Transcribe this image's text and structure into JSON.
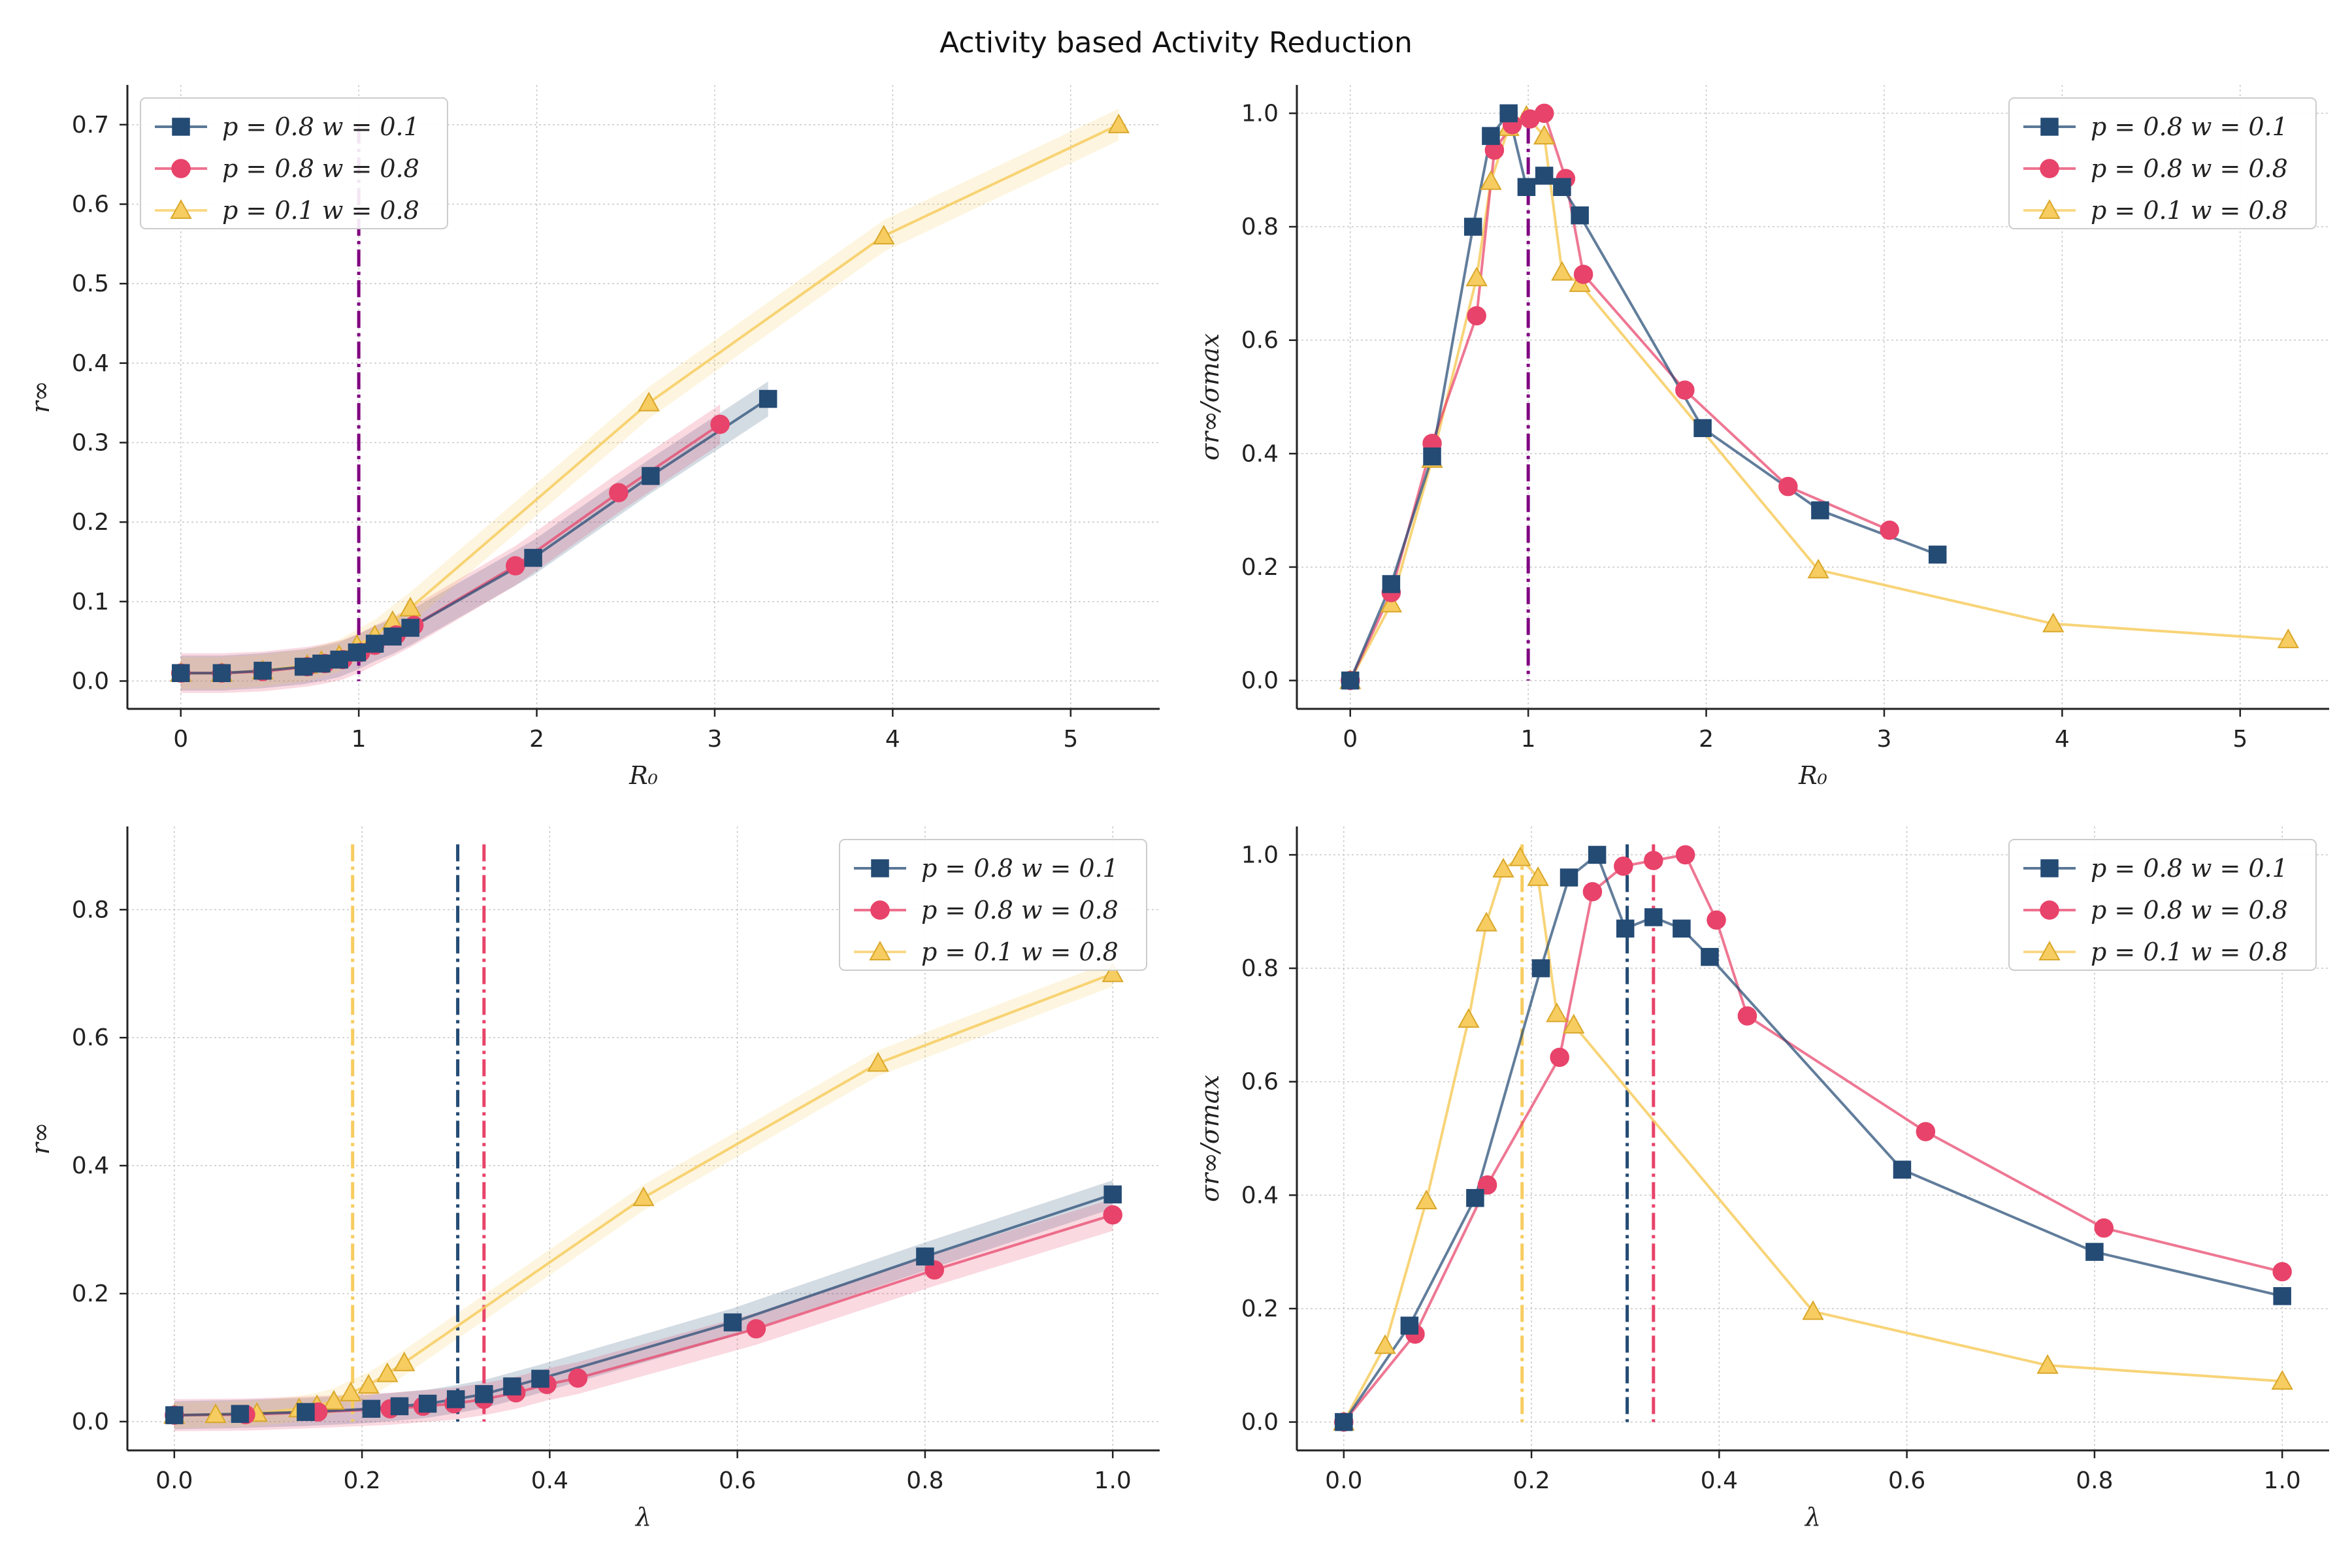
{
  "figure": {
    "title": "Activity based Activity Reduction"
  },
  "chart_data": [
    {
      "type": "line",
      "panel": "top-left",
      "xlabel": "R₀",
      "ylabel": "r∞",
      "xlim": [
        -0.3,
        5.5
      ],
      "ylim": [
        -0.035,
        0.75
      ],
      "xticks": [
        0,
        1,
        2,
        3,
        4,
        5
      ],
      "yticks": [
        0.0,
        0.1,
        0.2,
        0.3,
        0.4,
        0.5,
        0.6,
        0.7
      ],
      "grid": true,
      "legend": "top-left",
      "vlines": [
        {
          "x": 1.0,
          "color": "#800080"
        }
      ],
      "series": [
        {
          "name": "p = 0.8 w = 0.1",
          "color": "#244b74",
          "marker": "square",
          "x": [
            0,
            0.23,
            0.46,
            0.69,
            0.79,
            0.89,
            0.99,
            1.09,
            1.19,
            1.29,
            1.98,
            2.64,
            3.3
          ],
          "y": [
            0.01,
            0.01,
            0.013,
            0.018,
            0.022,
            0.027,
            0.036,
            0.047,
            0.056,
            0.067,
            0.155,
            0.258,
            0.355
          ],
          "band": 0.022
        },
        {
          "name": "p = 0.8 w = 0.8",
          "color": "#e8436a",
          "marker": "circle",
          "x": [
            0,
            0.23,
            0.46,
            0.71,
            0.81,
            0.91,
            1.01,
            1.09,
            1.21,
            1.31,
            1.88,
            2.46,
            3.03
          ],
          "y": [
            0.01,
            0.01,
            0.012,
            0.018,
            0.022,
            0.027,
            0.036,
            0.045,
            0.058,
            0.07,
            0.145,
            0.237,
            0.323
          ],
          "band": 0.025
        },
        {
          "name": "p = 0.1 w = 0.8",
          "color": "#f7cc60",
          "marker": "triangle",
          "x": [
            0,
            0.23,
            0.46,
            0.71,
            0.79,
            0.89,
            0.99,
            1.09,
            1.19,
            1.29,
            2.63,
            3.95,
            5.27
          ],
          "y": [
            0.01,
            0.01,
            0.013,
            0.02,
            0.025,
            0.032,
            0.045,
            0.057,
            0.075,
            0.092,
            0.35,
            0.56,
            0.7
          ],
          "band": 0.02
        }
      ]
    },
    {
      "type": "line",
      "panel": "top-right",
      "xlabel": "R₀",
      "ylabel": "σr∞/σmax",
      "xlim": [
        -0.3,
        5.5
      ],
      "ylim": [
        -0.05,
        1.05
      ],
      "xticks": [
        0,
        1,
        2,
        3,
        4,
        5
      ],
      "yticks": [
        0.0,
        0.2,
        0.4,
        0.6,
        0.8,
        1.0
      ],
      "grid": true,
      "legend": "top-right",
      "vlines": [
        {
          "x": 1.0,
          "color": "#800080"
        }
      ],
      "series": [
        {
          "name": "p = 0.8 w = 0.1",
          "color": "#244b74",
          "marker": "square",
          "x": [
            0,
            0.23,
            0.46,
            0.69,
            0.79,
            0.89,
            0.99,
            1.09,
            1.19,
            1.29,
            1.98,
            2.64,
            3.3
          ],
          "y": [
            0,
            0.17,
            0.395,
            0.8,
            0.96,
            1.0,
            0.87,
            0.89,
            0.87,
            0.82,
            0.445,
            0.3,
            0.222
          ]
        },
        {
          "name": "p = 0.8 w = 0.8",
          "color": "#e8436a",
          "marker": "circle",
          "x": [
            0,
            0.23,
            0.46,
            0.71,
            0.81,
            0.91,
            1.01,
            1.09,
            1.21,
            1.31,
            1.88,
            2.46,
            3.03
          ],
          "y": [
            0,
            0.155,
            0.418,
            0.643,
            0.935,
            0.98,
            0.99,
            1.0,
            0.885,
            0.716,
            0.512,
            0.342,
            0.265
          ]
        },
        {
          "name": "p = 0.1 w = 0.8",
          "color": "#f7cc60",
          "marker": "triangle",
          "x": [
            0,
            0.23,
            0.46,
            0.71,
            0.79,
            0.89,
            0.99,
            1.09,
            1.19,
            1.29,
            2.63,
            3.95,
            5.27
          ],
          "y": [
            0,
            0.135,
            0.39,
            0.71,
            0.88,
            0.975,
            0.995,
            0.96,
            0.72,
            0.7,
            0.195,
            0.1,
            0.072
          ]
        }
      ]
    },
    {
      "type": "line",
      "panel": "bottom-left",
      "xlabel": "λ",
      "ylabel": "r∞",
      "xlim": [
        -0.05,
        1.05
      ],
      "ylim": [
        -0.045,
        0.93
      ],
      "xticks": [
        0.0,
        0.2,
        0.4,
        0.6,
        0.8,
        1.0
      ],
      "yticks": [
        0.0,
        0.2,
        0.4,
        0.6,
        0.8
      ],
      "grid": true,
      "legend": "top-right",
      "vlines": [
        {
          "x": 0.19,
          "color": "#f7cc60"
        },
        {
          "x": 0.302,
          "color": "#244b74"
        },
        {
          "x": 0.33,
          "color": "#e8436a"
        }
      ],
      "series": [
        {
          "name": "p = 0.8 w = 0.1",
          "color": "#244b74",
          "marker": "square",
          "x": [
            0,
            0.07,
            0.14,
            0.21,
            0.24,
            0.27,
            0.3,
            0.33,
            0.36,
            0.39,
            0.595,
            0.8,
            1.0
          ],
          "y": [
            0.01,
            0.012,
            0.015,
            0.02,
            0.024,
            0.028,
            0.035,
            0.043,
            0.055,
            0.067,
            0.155,
            0.258,
            0.355
          ],
          "band": 0.022
        },
        {
          "name": "p = 0.8 w = 0.8",
          "color": "#e8436a",
          "marker": "circle",
          "x": [
            0,
            0.076,
            0.153,
            0.23,
            0.265,
            0.298,
            0.33,
            0.364,
            0.397,
            0.43,
            0.62,
            0.81,
            1.0
          ],
          "y": [
            0.01,
            0.011,
            0.015,
            0.02,
            0.024,
            0.028,
            0.035,
            0.045,
            0.058,
            0.068,
            0.145,
            0.237,
            0.323
          ],
          "band": 0.025
        },
        {
          "name": "p = 0.1 w = 0.8",
          "color": "#f7cc60",
          "marker": "triangle",
          "x": [
            0,
            0.044,
            0.088,
            0.133,
            0.152,
            0.17,
            0.188,
            0.207,
            0.227,
            0.245,
            0.5,
            0.75,
            1.0
          ],
          "y": [
            0.01,
            0.011,
            0.013,
            0.02,
            0.025,
            0.032,
            0.045,
            0.057,
            0.075,
            0.092,
            0.35,
            0.56,
            0.7
          ],
          "band": 0.02
        }
      ]
    },
    {
      "type": "line",
      "panel": "bottom-right",
      "xlabel": "λ",
      "ylabel": "σr∞/σmax",
      "xlim": [
        -0.05,
        1.05
      ],
      "ylim": [
        -0.05,
        1.05
      ],
      "xticks": [
        0.0,
        0.2,
        0.4,
        0.6,
        0.8,
        1.0
      ],
      "yticks": [
        0.0,
        0.2,
        0.4,
        0.6,
        0.8,
        1.0
      ],
      "grid": true,
      "legend": "top-right",
      "vlines": [
        {
          "x": 0.19,
          "color": "#f7cc60"
        },
        {
          "x": 0.302,
          "color": "#244b74"
        },
        {
          "x": 0.33,
          "color": "#e8436a"
        }
      ],
      "series": [
        {
          "name": "p = 0.8 w = 0.1",
          "color": "#244b74",
          "marker": "square",
          "x": [
            0,
            0.07,
            0.14,
            0.21,
            0.24,
            0.27,
            0.3,
            0.33,
            0.36,
            0.39,
            0.595,
            0.8,
            1.0
          ],
          "y": [
            0,
            0.17,
            0.395,
            0.8,
            0.96,
            1.0,
            0.87,
            0.89,
            0.87,
            0.82,
            0.445,
            0.3,
            0.222
          ]
        },
        {
          "name": "p = 0.8 w = 0.8",
          "color": "#e8436a",
          "marker": "circle",
          "x": [
            0,
            0.076,
            0.153,
            0.23,
            0.265,
            0.298,
            0.33,
            0.364,
            0.397,
            0.43,
            0.62,
            0.81,
            1.0
          ],
          "y": [
            0,
            0.155,
            0.418,
            0.643,
            0.935,
            0.98,
            0.99,
            1.0,
            0.885,
            0.716,
            0.512,
            0.342,
            0.265
          ]
        },
        {
          "name": "p = 0.1 w = 0.8",
          "color": "#f7cc60",
          "marker": "triangle",
          "x": [
            0,
            0.044,
            0.088,
            0.133,
            0.152,
            0.17,
            0.188,
            0.207,
            0.227,
            0.245,
            0.5,
            0.75,
            1.0
          ],
          "y": [
            0,
            0.135,
            0.39,
            0.71,
            0.88,
            0.975,
            0.995,
            0.96,
            0.72,
            0.7,
            0.195,
            0.1,
            0.072
          ]
        }
      ]
    }
  ]
}
